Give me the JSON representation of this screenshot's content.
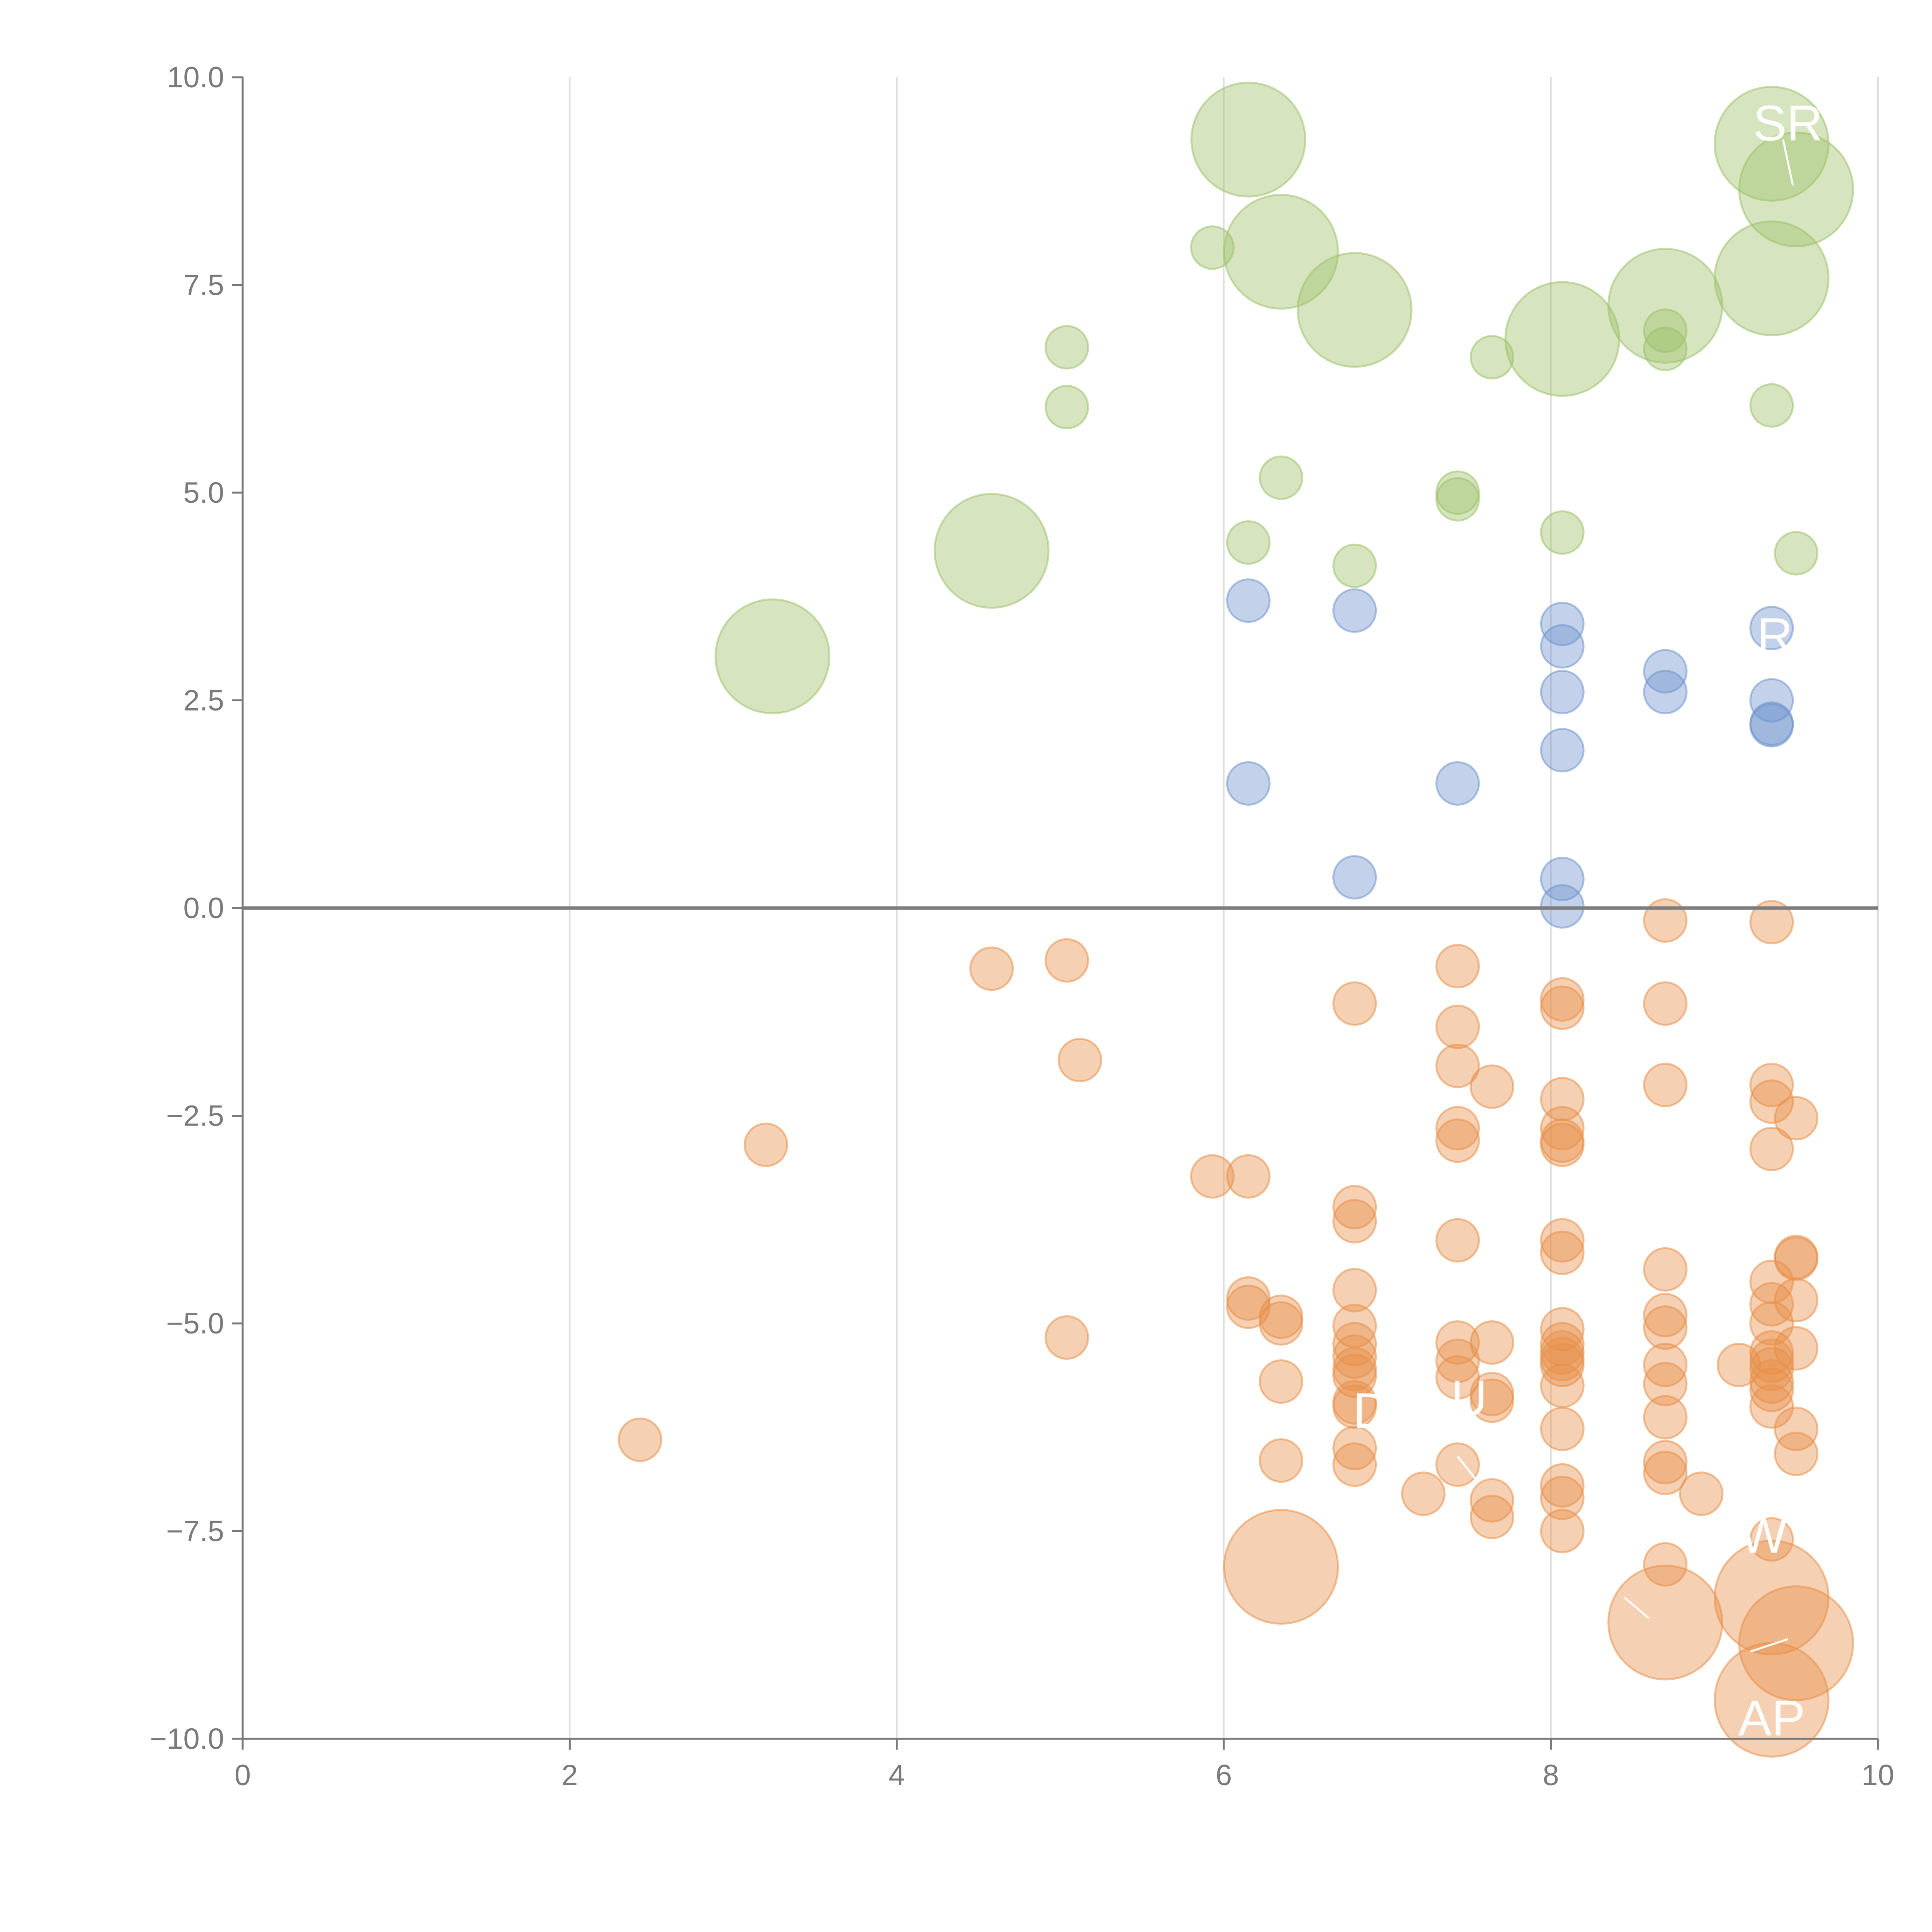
{
  "chart_data": {
    "type": "scatter",
    "title": "",
    "xlabel": "",
    "ylabel": "",
    "xlim": [
      0,
      10
    ],
    "ylim": [
      -10,
      10
    ],
    "xticks": [
      "0",
      "2",
      "4",
      "6",
      "8",
      "10"
    ],
    "yticks": [
      "−10.0",
      "−7.5",
      "−5.0",
      "−2.5",
      "0.0",
      "2.5",
      "5.0",
      "7.5",
      "10.0"
    ],
    "xtick_values": [
      0,
      2,
      4,
      6,
      8,
      10
    ],
    "ytick_values": [
      -10,
      -7.5,
      -5,
      -2.5,
      0,
      2.5,
      5,
      7.5,
      10
    ],
    "grid": "vertical",
    "reference_line_y": 0,
    "colors": {
      "green": "#9dc16a",
      "blue": "#6f94cc",
      "orange": "#e8904a",
      "axis": "#7a7a7a",
      "grid": "#dddddd"
    },
    "series": [
      {
        "name": "green",
        "color": "#9dc16a",
        "points": [
          {
            "x": 6.15,
            "y": 9.25,
            "s": 3
          },
          {
            "x": 9.35,
            "y": 9.2,
            "s": 3
          },
          {
            "x": 9.5,
            "y": 8.65,
            "s": 3
          },
          {
            "x": 5.93,
            "y": 7.95,
            "s": 1
          },
          {
            "x": 6.35,
            "y": 7.9,
            "s": 3
          },
          {
            "x": 9.35,
            "y": 7.58,
            "s": 3
          },
          {
            "x": 8.7,
            "y": 7.25,
            "s": 3
          },
          {
            "x": 6.8,
            "y": 7.2,
            "s": 3
          },
          {
            "x": 8.7,
            "y": 6.95,
            "s": 1
          },
          {
            "x": 8.07,
            "y": 6.85,
            "s": 3
          },
          {
            "x": 5.04,
            "y": 6.75,
            "s": 1
          },
          {
            "x": 8.7,
            "y": 6.73,
            "s": 1
          },
          {
            "x": 7.64,
            "y": 6.63,
            "s": 1
          },
          {
            "x": 5.04,
            "y": 6.03,
            "s": 1
          },
          {
            "x": 9.35,
            "y": 6.05,
            "s": 1
          },
          {
            "x": 6.35,
            "y": 5.18,
            "s": 1
          },
          {
            "x": 7.43,
            "y": 5.0,
            "s": 1
          },
          {
            "x": 7.43,
            "y": 4.92,
            "s": 1
          },
          {
            "x": 8.07,
            "y": 4.52,
            "s": 1
          },
          {
            "x": 6.15,
            "y": 4.4,
            "s": 1
          },
          {
            "x": 4.58,
            "y": 4.3,
            "s": 3
          },
          {
            "x": 9.5,
            "y": 4.27,
            "s": 1
          },
          {
            "x": 6.8,
            "y": 4.12,
            "s": 1
          },
          {
            "x": 3.24,
            "y": 3.03,
            "s": 3
          }
        ]
      },
      {
        "name": "blue",
        "color": "#6f94cc",
        "points": [
          {
            "x": 6.15,
            "y": 3.7,
            "s": 1
          },
          {
            "x": 6.8,
            "y": 3.58,
            "s": 1
          },
          {
            "x": 8.07,
            "y": 3.42,
            "s": 1
          },
          {
            "x": 9.35,
            "y": 3.37,
            "s": 1
          },
          {
            "x": 8.07,
            "y": 3.15,
            "s": 1
          },
          {
            "x": 8.7,
            "y": 2.85,
            "s": 1
          },
          {
            "x": 8.07,
            "y": 2.6,
            "s": 1
          },
          {
            "x": 8.7,
            "y": 2.6,
            "s": 1
          },
          {
            "x": 9.35,
            "y": 2.5,
            "s": 1
          },
          {
            "x": 9.35,
            "y": 2.22,
            "s": 1
          },
          {
            "x": 9.35,
            "y": 2.2,
            "s": 1
          },
          {
            "x": 8.07,
            "y": 1.9,
            "s": 1
          },
          {
            "x": 6.15,
            "y": 1.5,
            "s": 1
          },
          {
            "x": 7.43,
            "y": 1.5,
            "s": 1
          },
          {
            "x": 6.8,
            "y": 0.37,
            "s": 1
          },
          {
            "x": 8.07,
            "y": 0.35,
            "s": 1
          },
          {
            "x": 8.07,
            "y": 0.02,
            "s": 1
          }
        ]
      },
      {
        "name": "orange",
        "color": "#e8904a",
        "points": [
          {
            "x": 8.7,
            "y": -0.15,
            "s": 1
          },
          {
            "x": 9.35,
            "y": -0.17,
            "s": 1
          },
          {
            "x": 5.04,
            "y": -0.63,
            "s": 1
          },
          {
            "x": 7.43,
            "y": -0.7,
            "s": 1
          },
          {
            "x": 4.58,
            "y": -0.73,
            "s": 1
          },
          {
            "x": 8.07,
            "y": -1.1,
            "s": 1
          },
          {
            "x": 6.8,
            "y": -1.15,
            "s": 1
          },
          {
            "x": 8.7,
            "y": -1.15,
            "s": 1
          },
          {
            "x": 8.07,
            "y": -1.2,
            "s": 1
          },
          {
            "x": 7.43,
            "y": -1.43,
            "s": 1
          },
          {
            "x": 5.12,
            "y": -1.83,
            "s": 1
          },
          {
            "x": 7.43,
            "y": -1.9,
            "s": 1
          },
          {
            "x": 8.7,
            "y": -2.13,
            "s": 1
          },
          {
            "x": 9.35,
            "y": -2.13,
            "s": 1
          },
          {
            "x": 7.64,
            "y": -2.15,
            "s": 1
          },
          {
            "x": 8.07,
            "y": -2.3,
            "s": 1
          },
          {
            "x": 9.35,
            "y": -2.33,
            "s": 1
          },
          {
            "x": 9.5,
            "y": -2.53,
            "s": 1
          },
          {
            "x": 8.07,
            "y": -2.65,
            "s": 1
          },
          {
            "x": 7.43,
            "y": -2.65,
            "s": 1
          },
          {
            "x": 7.43,
            "y": -2.8,
            "s": 1
          },
          {
            "x": 8.07,
            "y": -2.8,
            "s": 1
          },
          {
            "x": 8.07,
            "y": -2.85,
            "s": 1
          },
          {
            "x": 3.2,
            "y": -2.85,
            "s": 1
          },
          {
            "x": 9.35,
            "y": -2.9,
            "s": 1
          },
          {
            "x": 5.93,
            "y": -3.23,
            "s": 1
          },
          {
            "x": 6.15,
            "y": -3.23,
            "s": 1
          },
          {
            "x": 6.8,
            "y": -3.6,
            "s": 1
          },
          {
            "x": 6.8,
            "y": -3.77,
            "s": 1
          },
          {
            "x": 7.43,
            "y": -4.0,
            "s": 1
          },
          {
            "x": 8.07,
            "y": -4.0,
            "s": 1
          },
          {
            "x": 8.07,
            "y": -4.15,
            "s": 1
          },
          {
            "x": 9.5,
            "y": -4.2,
            "s": 1
          },
          {
            "x": 9.5,
            "y": -4.22,
            "s": 1
          },
          {
            "x": 8.7,
            "y": -4.35,
            "s": 1
          },
          {
            "x": 9.35,
            "y": -4.5,
            "s": 1
          },
          {
            "x": 6.8,
            "y": -4.6,
            "s": 1
          },
          {
            "x": 6.15,
            "y": -4.7,
            "s": 1
          },
          {
            "x": 9.5,
            "y": -4.72,
            "s": 1
          },
          {
            "x": 9.35,
            "y": -4.77,
            "s": 1
          },
          {
            "x": 6.15,
            "y": -4.8,
            "s": 1
          },
          {
            "x": 6.35,
            "y": -4.92,
            "s": 1
          },
          {
            "x": 8.7,
            "y": -4.9,
            "s": 1
          },
          {
            "x": 6.35,
            "y": -5.0,
            "s": 1
          },
          {
            "x": 9.35,
            "y": -5.0,
            "s": 1
          },
          {
            "x": 6.8,
            "y": -5.03,
            "s": 1
          },
          {
            "x": 8.7,
            "y": -5.05,
            "s": 1
          },
          {
            "x": 8.07,
            "y": -5.07,
            "s": 1
          },
          {
            "x": 5.04,
            "y": -5.17,
            "s": 1
          },
          {
            "x": 7.64,
            "y": -5.23,
            "s": 1
          },
          {
            "x": 7.43,
            "y": -5.23,
            "s": 1
          },
          {
            "x": 8.07,
            "y": -5.25,
            "s": 1
          },
          {
            "x": 6.8,
            "y": -5.25,
            "s": 1
          },
          {
            "x": 9.5,
            "y": -5.3,
            "s": 1
          },
          {
            "x": 8.07,
            "y": -5.35,
            "s": 1
          },
          {
            "x": 9.35,
            "y": -5.35,
            "s": 1
          },
          {
            "x": 6.8,
            "y": -5.4,
            "s": 1
          },
          {
            "x": 8.07,
            "y": -5.43,
            "s": 1
          },
          {
            "x": 7.43,
            "y": -5.45,
            "s": 1
          },
          {
            "x": 9.35,
            "y": -5.45,
            "s": 1
          },
          {
            "x": 8.07,
            "y": -5.5,
            "s": 1
          },
          {
            "x": 9.15,
            "y": -5.5,
            "s": 1
          },
          {
            "x": 8.7,
            "y": -5.5,
            "s": 1
          },
          {
            "x": 9.35,
            "y": -5.55,
            "s": 1
          },
          {
            "x": 6.8,
            "y": -5.55,
            "s": 1
          },
          {
            "x": 6.8,
            "y": -5.63,
            "s": 1
          },
          {
            "x": 7.43,
            "y": -5.65,
            "s": 1
          },
          {
            "x": 6.35,
            "y": -5.7,
            "s": 1
          },
          {
            "x": 9.35,
            "y": -5.7,
            "s": 1
          },
          {
            "x": 8.7,
            "y": -5.73,
            "s": 1
          },
          {
            "x": 8.07,
            "y": -5.75,
            "s": 1
          },
          {
            "x": 9.35,
            "y": -5.8,
            "s": 1
          },
          {
            "x": 7.64,
            "y": -5.85,
            "s": 1
          },
          {
            "x": 7.64,
            "y": -5.93,
            "s": 1
          },
          {
            "x": 6.8,
            "y": -5.95,
            "s": 1
          },
          {
            "x": 6.8,
            "y": -6.0,
            "s": 1
          },
          {
            "x": 9.35,
            "y": -6.0,
            "s": 1
          },
          {
            "x": 8.7,
            "y": -6.13,
            "s": 1
          },
          {
            "x": 9.5,
            "y": -6.27,
            "s": 1
          },
          {
            "x": 8.07,
            "y": -6.27,
            "s": 1
          },
          {
            "x": 2.43,
            "y": -6.4,
            "s": 1
          },
          {
            "x": 6.8,
            "y": -6.5,
            "s": 1
          },
          {
            "x": 9.5,
            "y": -6.57,
            "s": 1
          },
          {
            "x": 6.35,
            "y": -6.65,
            "s": 1
          },
          {
            "x": 8.7,
            "y": -6.67,
            "s": 1
          },
          {
            "x": 7.43,
            "y": -6.7,
            "s": 1
          },
          {
            "x": 6.8,
            "y": -6.7,
            "s": 1
          },
          {
            "x": 8.7,
            "y": -6.8,
            "s": 1
          },
          {
            "x": 8.07,
            "y": -6.95,
            "s": 1
          },
          {
            "x": 7.22,
            "y": -7.05,
            "s": 1
          },
          {
            "x": 8.92,
            "y": -7.05,
            "s": 1
          },
          {
            "x": 8.07,
            "y": -7.1,
            "s": 1
          },
          {
            "x": 7.64,
            "y": -7.13,
            "s": 1
          },
          {
            "x": 7.64,
            "y": -7.33,
            "s": 1
          },
          {
            "x": 8.07,
            "y": -7.5,
            "s": 1
          },
          {
            "x": 9.35,
            "y": -7.6,
            "s": 1
          },
          {
            "x": 6.35,
            "y": -7.93,
            "s": 3
          },
          {
            "x": 8.7,
            "y": -7.9,
            "s": 1
          },
          {
            "x": 9.35,
            "y": -8.3,
            "s": 3
          },
          {
            "x": 8.7,
            "y": -8.6,
            "s": 3
          },
          {
            "x": 9.5,
            "y": -8.85,
            "s": 3
          },
          {
            "x": 9.35,
            "y": -9.53,
            "s": 3
          }
        ]
      }
    ],
    "annotations": [
      {
        "text": "SR",
        "x": 9.45,
        "y": 9.45,
        "ax": 9.42,
        "ay": 9.25,
        "bx": 9.48,
        "by": 8.7
      },
      {
        "text": "R",
        "x": 9.37,
        "y": 3.28,
        "ax": 9.35,
        "ay": 3.3,
        "bx": 9.35,
        "by": 3.3
      },
      {
        "text": "D",
        "x": 6.9,
        "y": -6.05,
        "ax": 6.9,
        "ay": -6.0,
        "bx": 6.9,
        "by": -6.0
      },
      {
        "text": "U",
        "x": 7.5,
        "y": -5.9,
        "ax": 7.43,
        "ay": -6.6,
        "bx": 7.55,
        "by": -6.9
      },
      {
        "text": "W",
        "x": 9.3,
        "y": -7.55,
        "ax": 8.45,
        "ay": -8.3,
        "bx": 8.6,
        "by": -8.55
      },
      {
        "text": "AP",
        "x": 9.35,
        "y": -9.75,
        "ax": 9.22,
        "ay": -8.95,
        "bx": 9.45,
        "by": -8.8
      }
    ]
  }
}
